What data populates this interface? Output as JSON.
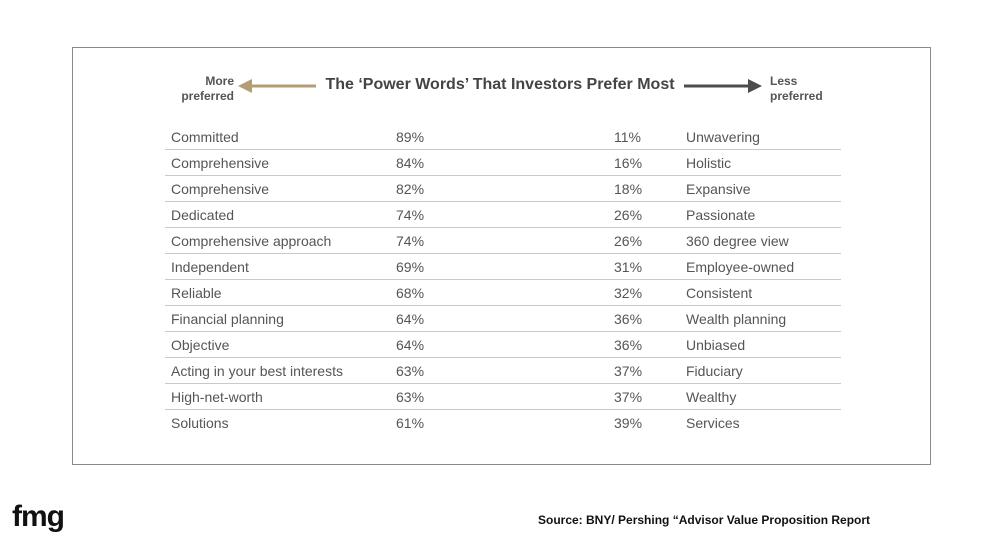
{
  "header": {
    "title": "The ‘Power Words’ That Investors Prefer Most",
    "left_label_line1": "More",
    "left_label_line2": "preferred",
    "right_label_line1": "Less",
    "right_label_line2": "preferred"
  },
  "colors": {
    "left_arrow": "#b39e73",
    "right_arrow": "#4d4d4d",
    "row_divider": "#c9c9c9",
    "frame_border": "#8a8a8a"
  },
  "rows": [
    {
      "preferred": "Committed",
      "preferred_pct": "89%",
      "less_pct": "11%",
      "less": "Unwavering"
    },
    {
      "preferred": "Comprehensive",
      "preferred_pct": "84%",
      "less_pct": "16%",
      "less": "Holistic"
    },
    {
      "preferred": "Comprehensive",
      "preferred_pct": "82%",
      "less_pct": "18%",
      "less": "Expansive"
    },
    {
      "preferred": "Dedicated",
      "preferred_pct": "74%",
      "less_pct": "26%",
      "less": "Passionate"
    },
    {
      "preferred": "Comprehensive approach",
      "preferred_pct": "74%",
      "less_pct": "26%",
      "less": "360 degree view"
    },
    {
      "preferred": "Independent",
      "preferred_pct": "69%",
      "less_pct": "31%",
      "less": "Employee-owned"
    },
    {
      "preferred": "Reliable",
      "preferred_pct": "68%",
      "less_pct": "32%",
      "less": "Consistent"
    },
    {
      "preferred": "Financial planning",
      "preferred_pct": "64%",
      "less_pct": "36%",
      "less": "Wealth planning"
    },
    {
      "preferred": "Objective",
      "preferred_pct": "64%",
      "less_pct": "36%",
      "less": "Unbiased"
    },
    {
      "preferred": "Acting in your best interests",
      "preferred_pct": "63%",
      "less_pct": "37%",
      "less": "Fiduciary"
    },
    {
      "preferred": "High-net-worth",
      "preferred_pct": "63%",
      "less_pct": "37%",
      "less": "Wealthy"
    },
    {
      "preferred": "Solutions",
      "preferred_pct": "61%",
      "less_pct": "39%",
      "less": "Services"
    }
  ],
  "footer": {
    "logo": "fmg",
    "source": "Source: BNY/ Pershing “Advisor Value Proposition Report"
  }
}
